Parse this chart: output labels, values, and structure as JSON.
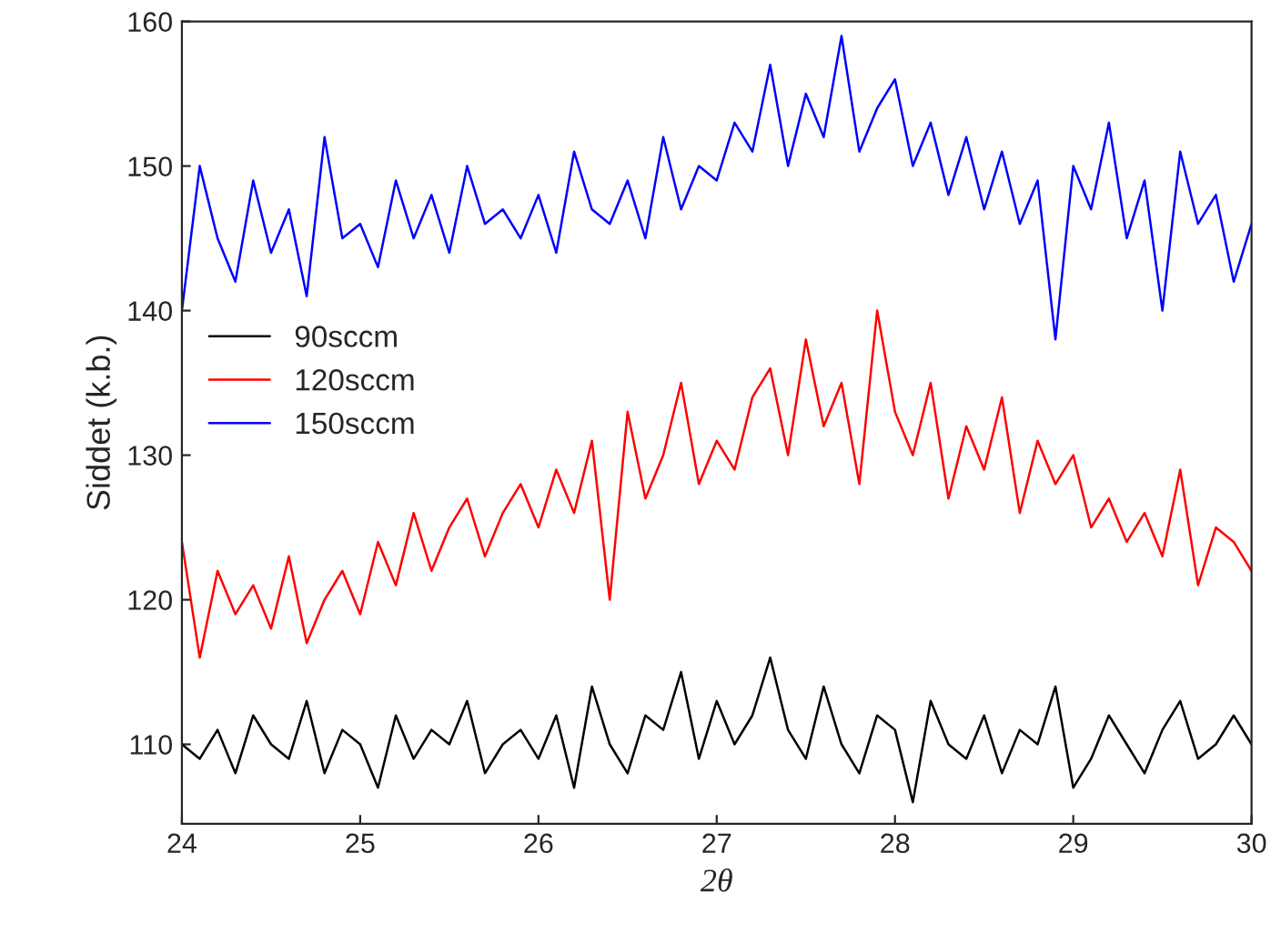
{
  "chart_data": {
    "type": "line",
    "xlabel": "2θ",
    "ylabel": "Siddet (k.b.)",
    "x": [
      24.0,
      24.1,
      24.2,
      24.3,
      24.4,
      24.5,
      24.6,
      24.7,
      24.8,
      24.9,
      25.0,
      25.1,
      25.2,
      25.3,
      25.4,
      25.5,
      25.6,
      25.7,
      25.8,
      25.9,
      26.0,
      26.1,
      26.2,
      26.3,
      26.4,
      26.5,
      26.6,
      26.7,
      26.8,
      26.9,
      27.0,
      27.1,
      27.2,
      27.3,
      27.4,
      27.5,
      27.6,
      27.7,
      27.8,
      27.9,
      28.0,
      28.1,
      28.2,
      28.3,
      28.4,
      28.5,
      28.6,
      28.7,
      28.8,
      28.9,
      29.0,
      29.1,
      29.2,
      29.3,
      29.4,
      29.5,
      29.6,
      29.7,
      29.8,
      29.9,
      30.0
    ],
    "series": [
      {
        "name": "90sccm",
        "color": "#000000",
        "values": [
          110,
          109,
          111,
          108,
          112,
          110,
          109,
          113,
          108,
          111,
          110,
          107,
          112,
          109,
          111,
          110,
          113,
          108,
          110,
          111,
          109,
          112,
          107,
          114,
          110,
          108,
          112,
          111,
          115,
          109,
          113,
          110,
          112,
          116,
          111,
          109,
          114,
          110,
          108,
          112,
          111,
          106,
          113,
          110,
          109,
          112,
          108,
          111,
          110,
          114,
          107,
          109,
          112,
          110,
          108,
          111,
          113,
          109,
          110,
          112,
          110
        ]
      },
      {
        "name": "120sccm",
        "color": "#ff0000",
        "values": [
          124,
          116,
          122,
          119,
          121,
          118,
          123,
          117,
          120,
          122,
          119,
          124,
          121,
          126,
          122,
          125,
          127,
          123,
          126,
          128,
          125,
          129,
          126,
          131,
          120,
          133,
          127,
          130,
          135,
          128,
          131,
          129,
          134,
          136,
          130,
          138,
          132,
          135,
          128,
          140,
          133,
          130,
          135,
          127,
          132,
          129,
          134,
          126,
          131,
          128,
          130,
          125,
          127,
          124,
          126,
          123,
          129,
          121,
          125,
          124,
          122
        ]
      },
      {
        "name": "150sccm",
        "color": "#0000ff",
        "values": [
          140,
          150,
          145,
          142,
          149,
          144,
          147,
          141,
          152,
          145,
          146,
          143,
          149,
          145,
          148,
          144,
          150,
          146,
          147,
          145,
          148,
          144,
          151,
          147,
          146,
          149,
          145,
          152,
          147,
          150,
          149,
          153,
          151,
          157,
          150,
          155,
          152,
          159,
          151,
          154,
          156,
          150,
          153,
          148,
          152,
          147,
          151,
          146,
          149,
          138,
          150,
          147,
          153,
          145,
          149,
          140,
          151,
          146,
          148,
          142,
          146
        ]
      }
    ],
    "xlim": [
      24,
      30
    ],
    "xticks": [
      24,
      25,
      26,
      27,
      28,
      29,
      30
    ],
    "ylim": [
      104.5,
      160
    ],
    "yticks": [
      110,
      120,
      130,
      140,
      150,
      160
    ],
    "legend": "left",
    "grid": false,
    "marker": "none",
    "line_style": "solid"
  }
}
